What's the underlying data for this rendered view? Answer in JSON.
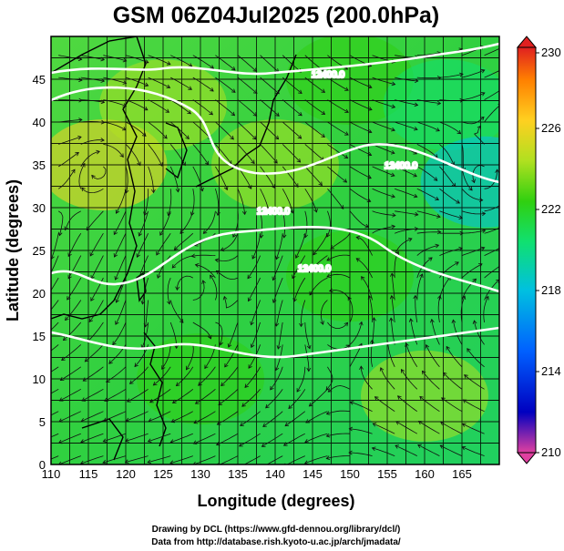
{
  "chart_data": {
    "type": "heatmap",
    "title": "GSM 06Z04Jul2025 (200.0hPa)",
    "xlabel": "Longitude (degrees)",
    "ylabel": "Latitude  (degrees)",
    "xlim": [
      110,
      170
    ],
    "ylim": [
      0,
      50
    ],
    "x_ticks": [
      110,
      115,
      120,
      125,
      130,
      135,
      140,
      145,
      150,
      155,
      160,
      165
    ],
    "y_ticks": [
      0,
      5,
      10,
      15,
      20,
      25,
      30,
      35,
      40,
      45
    ],
    "grid": true,
    "colorbar": {
      "ticks": [
        230,
        226,
        222,
        218,
        214,
        210
      ],
      "range": [
        210,
        230
      ],
      "colors": [
        "#e040a0",
        "#0000c0",
        "#0060ff",
        "#00c0e0",
        "#10e070",
        "#30d010",
        "#b0e020",
        "#ffd020",
        "#ff8000",
        "#e02020"
      ]
    },
    "contours": [
      {
        "label": "12400.0",
        "kind": "geopotential height"
      },
      {
        "label": "12400.0"
      },
      {
        "label": "12400.0"
      },
      {
        "label": "12400.0"
      }
    ],
    "features": [
      {
        "name": "anticyclone",
        "lon": 117,
        "lat": 35
      },
      {
        "name": "cyclone",
        "lon": 128,
        "lat": 21
      },
      {
        "name": "cyclone",
        "lon": 148,
        "lat": 18
      },
      {
        "name": "cyclone",
        "lon": 168,
        "lat": 33
      }
    ],
    "temperature_field": [
      {
        "lon": 117,
        "lat": 35,
        "value": 226
      },
      {
        "lon": 125,
        "lat": 42,
        "value": 224
      },
      {
        "lon": 140,
        "lat": 35,
        "value": 223
      },
      {
        "lon": 150,
        "lat": 45,
        "value": 220
      },
      {
        "lon": 163,
        "lat": 42,
        "value": 218
      },
      {
        "lon": 168,
        "lat": 33,
        "value": 217
      },
      {
        "lon": 150,
        "lat": 22,
        "value": 222
      },
      {
        "lon": 130,
        "lat": 10,
        "value": 222
      },
      {
        "lon": 160,
        "lat": 8,
        "value": 223
      }
    ]
  },
  "credits": {
    "line1": "Drawing by DCL (https://www.gfd-dennou.org/library/dcl/)",
    "line2": "Data from http://database.rish.kyoto-u.ac.jp/arch/jmadata/"
  }
}
